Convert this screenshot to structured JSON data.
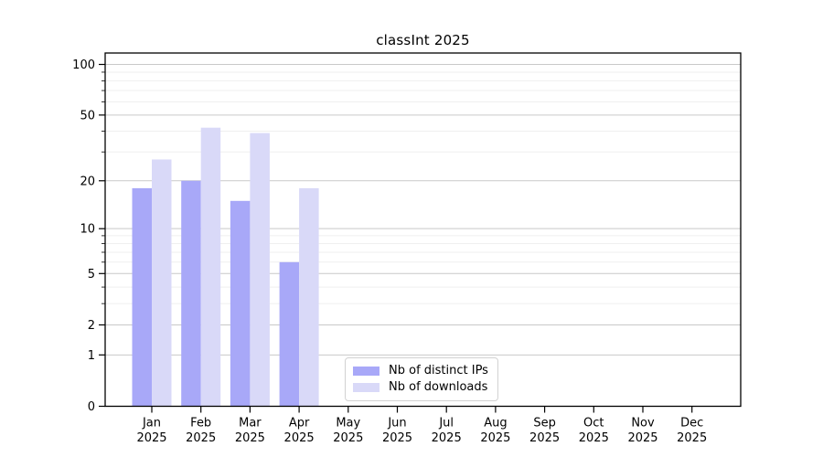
{
  "chart_data": {
    "type": "bar",
    "title": "classInt 2025",
    "categories": [
      "Jan 2025",
      "Feb 2025",
      "Mar 2025",
      "Apr 2025",
      "May 2025",
      "Jun 2025",
      "Jul 2025",
      "Aug 2025",
      "Sep 2025",
      "Oct 2025",
      "Nov 2025",
      "Dec 2025"
    ],
    "series": [
      {
        "name": "Nb of distinct IPs",
        "color": "#a8a8f8",
        "values": [
          18,
          20,
          15,
          6,
          null,
          null,
          null,
          null,
          null,
          null,
          null,
          null
        ]
      },
      {
        "name": "Nb of downloads",
        "color": "#d9d9f8",
        "values": [
          27,
          42,
          39,
          18,
          null,
          null,
          null,
          null,
          null,
          null,
          null,
          null
        ]
      }
    ],
    "xlabel": "",
    "ylabel": "",
    "y_axis": {
      "scale": "log1p",
      "ticks": [
        0,
        1,
        2,
        5,
        10,
        20,
        50,
        100
      ],
      "minor_ticks": [
        3,
        4,
        6,
        7,
        8,
        9,
        30,
        40,
        60,
        70,
        80,
        90
      ],
      "range": [
        0,
        120
      ]
    },
    "grid": "horizontal major and minor gridlines on",
    "legend_position": "inside bottom-center",
    "colors": {
      "major_grid": "#c9c9c9",
      "minor_grid": "#efefef",
      "axis": "#000000",
      "background": "#ffffff",
      "text": "#000000"
    }
  }
}
